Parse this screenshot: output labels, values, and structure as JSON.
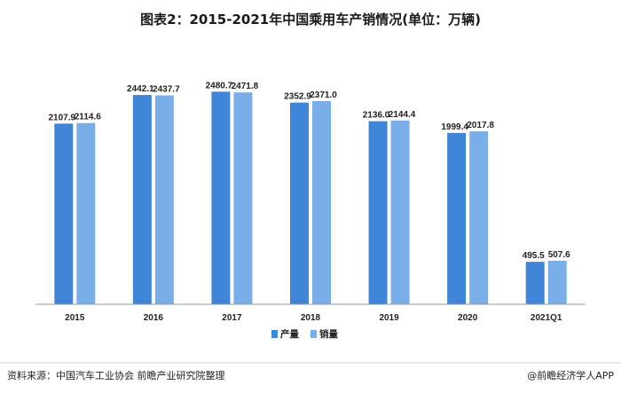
{
  "chart_data": {
    "type": "bar",
    "title": "图表2：2015-2021年中国乘用车产销情况(单位：万辆)",
    "categories": [
      "2015",
      "2016",
      "2017",
      "2018",
      "2019",
      "2020",
      "2021Q1"
    ],
    "series": [
      {
        "name": "产量",
        "values": [
          2107.9,
          2442.1,
          2480.7,
          2352.9,
          2136.0,
          1999.4,
          495.5
        ]
      },
      {
        "name": "销量",
        "values": [
          2114.6,
          2437.7,
          2471.8,
          2371.0,
          2144.4,
          2017.8,
          507.6
        ]
      }
    ],
    "ylim": [
      0,
      2950
    ],
    "legend_position": "bottom-center",
    "grid": false,
    "colors": {
      "产量": "#3f86d8",
      "销量": "#7aaee8"
    }
  },
  "footer": {
    "source": "资料来源：中国汽车工业协会 前瞻产业研究院整理",
    "brand": "@前瞻经济学人APP"
  }
}
